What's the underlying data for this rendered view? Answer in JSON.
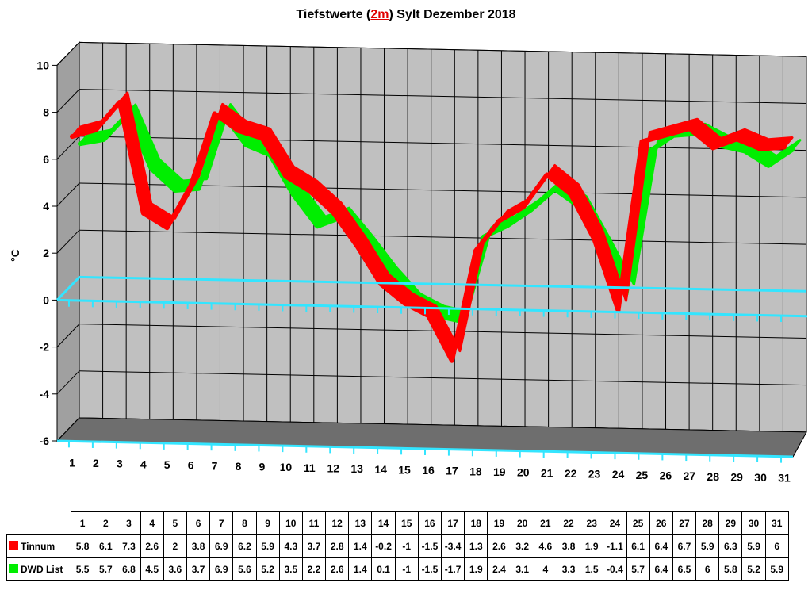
{
  "title": {
    "prefix": "Tiefstwerte (",
    "highlight": "2m",
    "suffix": ") Sylt Dezember 2018"
  },
  "chart_data": {
    "type": "line",
    "title": "Tiefstwerte (2m) Sylt Dezember 2018",
    "xlabel": "",
    "ylabel": "°C",
    "ylim": [
      -6,
      10
    ],
    "yticks": [
      10,
      8,
      6,
      4,
      2,
      0,
      -2,
      -4,
      -6
    ],
    "categories": [
      "1",
      "2",
      "3",
      "4",
      "5",
      "6",
      "7",
      "8",
      "9",
      "10",
      "11",
      "12",
      "13",
      "14",
      "15",
      "16",
      "17",
      "18",
      "19",
      "20",
      "21",
      "22",
      "23",
      "24",
      "25",
      "26",
      "27",
      "28",
      "29",
      "30",
      "31"
    ],
    "series": [
      {
        "name": "Tinnum",
        "color": "#ff0000",
        "values": [
          5.8,
          6.1,
          7.3,
          2.6,
          2,
          3.8,
          6.9,
          6.2,
          5.9,
          4.3,
          3.7,
          2.8,
          1.4,
          -0.2,
          -1,
          -1.5,
          -3.4,
          1.3,
          2.6,
          3.2,
          4.6,
          3.8,
          1.9,
          -1.1,
          6.1,
          6.4,
          6.7,
          5.9,
          6.3,
          5.9,
          6
        ]
      },
      {
        "name": "DWD List",
        "color": "#00ee00",
        "values": [
          5.5,
          5.7,
          6.8,
          4.5,
          3.6,
          3.7,
          6.9,
          5.6,
          5.2,
          3.5,
          2.2,
          2.6,
          1.4,
          0.1,
          -1,
          -1.5,
          -1.7,
          1.9,
          2.4,
          3.1,
          4,
          3.3,
          1.5,
          -0.4,
          5.7,
          6.4,
          6.5,
          6,
          5.8,
          5.2,
          5.9
        ]
      }
    ],
    "grid": true,
    "legend": "bottom-table"
  },
  "table": {
    "tinnum_values": [
      "5.8",
      "6.1",
      "7.3",
      "2.6",
      "2",
      "3.8",
      "6.9",
      "6.2",
      "5.9",
      "4.3",
      "3.7",
      "2.8",
      "1.4",
      "-0.2",
      "-1",
      "-1.5",
      "-3.4",
      "1.3",
      "2.6",
      "3.2",
      "4.6",
      "3.8",
      "1.9",
      "-1.1",
      "6.1",
      "6.4",
      "6.7",
      "5.9",
      "6.3",
      "5.9",
      "6"
    ],
    "dwd_values": [
      "5.5",
      "5.7",
      "6.8",
      "4.5",
      "3.6",
      "3.7",
      "6.9",
      "5.6",
      "5.2",
      "3.5",
      "2.2",
      "2.6",
      "1.4",
      "0.1",
      "-1",
      "-1.5",
      "-1.7",
      "1.9",
      "2.4",
      "3.1",
      "4",
      "3.3",
      "1.5",
      "-0.4",
      "5.7",
      "6.4",
      "6.5",
      "6",
      "5.8",
      "5.2",
      "5.9"
    ]
  }
}
